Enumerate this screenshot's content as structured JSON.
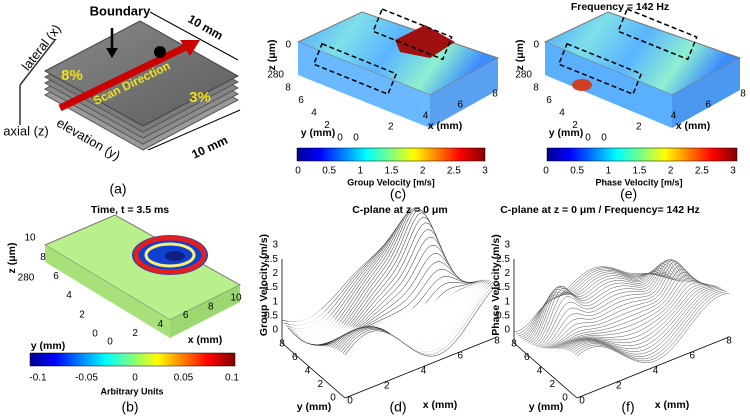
{
  "panels": {
    "a": {
      "label": "(a)",
      "lateral": "lateral (x)",
      "boundary": "Boundary",
      "top_size": "10 mm",
      "left_value": "8%",
      "right_value": "3%",
      "arrow": "Scan Direction",
      "axial": "axial (z)",
      "elevation": "elevation (y)",
      "side_size": "10 mm"
    },
    "b": {
      "label": "(b)",
      "title": "Time, t = 3.5 ms",
      "z_label": "z (μm)",
      "z_ticks": [
        280
      ],
      "y_ticks": [
        10,
        8,
        6,
        4,
        2,
        0
      ],
      "x_ticks": [
        0,
        2,
        4,
        6,
        8,
        10
      ],
      "y_label": "y (mm)",
      "x_label": "x (mm)",
      "colorbar_ticks": [
        -0.1,
        -0.05,
        0,
        0.05,
        0.1
      ],
      "colorbar_label": "Arbitrary Units"
    },
    "c": {
      "label": "(c)",
      "z_label": "z (μm)",
      "z_ticks": [
        0,
        280
      ],
      "y_ticks": [
        8,
        6,
        4,
        2,
        0
      ],
      "x_ticks": [
        0,
        2,
        4,
        6,
        8
      ],
      "y_label": "y (mm)",
      "x_label": "x (mm)",
      "colorbar_ticks": [
        0,
        0.5,
        1,
        1.5,
        2,
        2.5,
        3
      ],
      "colorbar_label": "Group Velocity [m/s]"
    },
    "d": {
      "label": "(d)",
      "title": "C-plane at z = 0 μm",
      "z_label": "Group Velocity (m/s)",
      "z_ticks": [
        3,
        2.5,
        2,
        1.5,
        1,
        0.5,
        0
      ],
      "y_ticks": [
        8,
        6,
        4,
        2,
        0
      ],
      "x_ticks": [
        0,
        2,
        4,
        6,
        8
      ],
      "y_label": "y (mm)",
      "x_label": "x (mm)"
    },
    "e": {
      "label": "(e)",
      "title": "Frequency = 142 Hz",
      "z_label": "z (μm)",
      "z_ticks": [
        0,
        280
      ],
      "y_ticks": [
        8,
        6,
        4,
        2,
        0
      ],
      "x_ticks": [
        0,
        2,
        4,
        6,
        8
      ],
      "y_label": "y (mm)",
      "x_label": "x (mm)",
      "colorbar_ticks": [
        0,
        0.5,
        1,
        1.5,
        2,
        2.5,
        3
      ],
      "colorbar_label": "Phase Velocity [m/s]"
    },
    "f": {
      "label": "(f)",
      "title": "C-plane at z = 0 μm / Frequency= 142 Hz",
      "z_label": "Phase Velocity (m/s)",
      "z_ticks": [
        3,
        2.5,
        2,
        1.5,
        1,
        0.5,
        0
      ],
      "y_ticks": [
        8,
        6,
        4,
        2,
        0
      ],
      "x_ticks": [
        0,
        2,
        4,
        6,
        8
      ],
      "y_label": "y (mm)",
      "x_label": "x (mm)"
    }
  }
}
